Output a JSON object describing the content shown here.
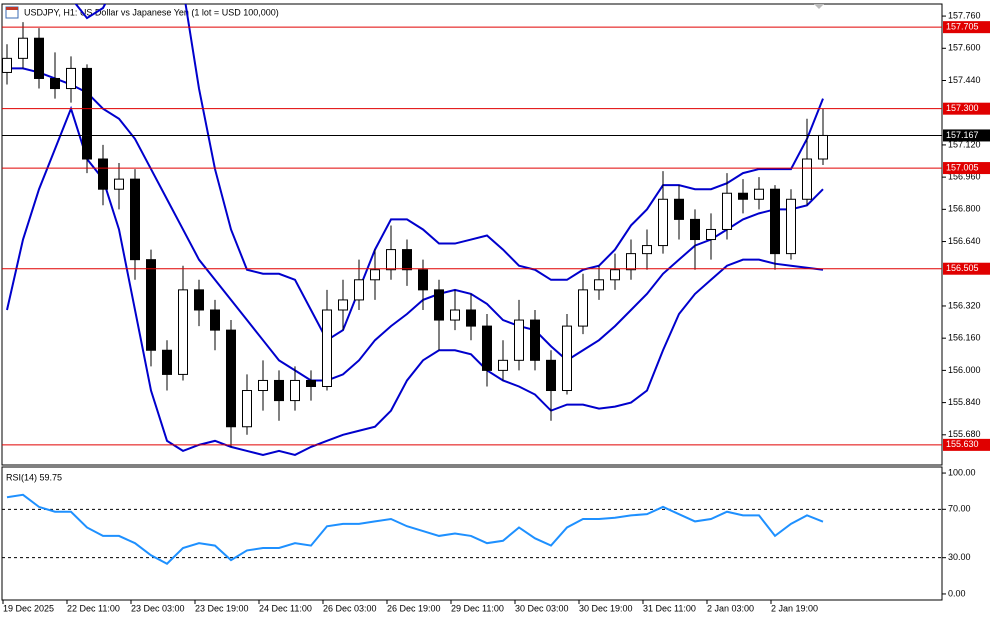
{
  "chart_data": [
    {
      "type": "candlestick",
      "title": "USDJPY, H1:  US Dollar vs Japanese Yen (1 lot = USD 100,000)",
      "categories": [
        "19 Dec 2025",
        null,
        null,
        null,
        "22 Dec 11:00",
        null,
        null,
        null,
        "23 Dec 03:00",
        null,
        null,
        null,
        "23 Dec 19:00",
        null,
        null,
        null,
        "24 Dec 11:00",
        null,
        null,
        null,
        "26 Dec 03:00",
        null,
        null,
        null,
        "26 Dec 19:00",
        null,
        null,
        null,
        "29 Dec 11:00",
        null,
        null,
        null,
        "30 Dec 03:00",
        null,
        null,
        null,
        "30 Dec 19:00",
        null,
        null,
        null,
        "31 Dec 11:00",
        null,
        null,
        null,
        "2 Jan 03:00",
        null,
        null,
        null,
        "2 Jan 19:00",
        null,
        null,
        null
      ],
      "ohlc": [
        [
          157.48,
          157.62,
          157.42,
          157.55
        ],
        [
          157.55,
          157.73,
          157.5,
          157.65
        ],
        [
          157.65,
          157.7,
          157.4,
          157.45
        ],
        [
          157.45,
          157.58,
          157.35,
          157.4
        ],
        [
          157.4,
          157.56,
          157.33,
          157.5
        ],
        [
          157.5,
          157.52,
          156.98,
          157.05
        ],
        [
          157.05,
          157.12,
          156.82,
          156.9
        ],
        [
          156.9,
          157.03,
          156.8,
          156.95
        ],
        [
          156.95,
          157.0,
          156.45,
          156.55
        ],
        [
          156.55,
          156.6,
          156.02,
          156.1
        ],
        [
          156.1,
          156.15,
          155.9,
          155.98
        ],
        [
          155.98,
          156.52,
          155.95,
          156.4
        ],
        [
          156.4,
          156.45,
          156.22,
          156.3
        ],
        [
          156.3,
          156.35,
          156.1,
          156.2
        ],
        [
          156.2,
          156.25,
          155.62,
          155.72
        ],
        [
          155.72,
          155.98,
          155.68,
          155.9
        ],
        [
          155.9,
          156.05,
          155.8,
          155.95
        ],
        [
          155.95,
          156.0,
          155.75,
          155.85
        ],
        [
          155.85,
          156.02,
          155.8,
          155.95
        ],
        [
          155.95,
          156.0,
          155.85,
          155.92
        ],
        [
          155.92,
          156.4,
          155.9,
          156.3
        ],
        [
          156.3,
          156.45,
          156.2,
          156.35
        ],
        [
          156.35,
          156.55,
          156.3,
          156.45
        ],
        [
          156.45,
          156.6,
          156.35,
          156.5
        ],
        [
          156.5,
          156.72,
          156.45,
          156.6
        ],
        [
          156.6,
          156.65,
          156.42,
          156.5
        ],
        [
          156.5,
          156.55,
          156.3,
          156.4
        ],
        [
          156.4,
          156.45,
          156.1,
          156.25
        ],
        [
          156.25,
          156.4,
          156.2,
          156.3
        ],
        [
          156.3,
          156.38,
          156.15,
          156.22
        ],
        [
          156.22,
          156.28,
          155.92,
          156.0
        ],
        [
          156.0,
          156.15,
          155.95,
          156.05
        ],
        [
          156.05,
          156.35,
          156.0,
          156.25
        ],
        [
          156.25,
          156.3,
          156.0,
          156.05
        ],
        [
          156.05,
          156.1,
          155.75,
          155.9
        ],
        [
          155.9,
          156.28,
          155.88,
          156.22
        ],
        [
          156.22,
          156.48,
          156.18,
          156.4
        ],
        [
          156.4,
          156.52,
          156.35,
          156.45
        ],
        [
          156.45,
          156.58,
          156.4,
          156.5
        ],
        [
          156.5,
          156.65,
          156.45,
          156.58
        ],
        [
          156.58,
          156.7,
          156.5,
          156.62
        ],
        [
          156.62,
          156.99,
          156.58,
          156.85
        ],
        [
          156.85,
          156.92,
          156.65,
          156.75
        ],
        [
          156.75,
          156.8,
          156.5,
          156.65
        ],
        [
          156.65,
          156.78,
          156.55,
          156.7
        ],
        [
          156.7,
          156.98,
          156.65,
          156.88
        ],
        [
          156.88,
          156.95,
          156.78,
          156.85
        ],
        [
          156.85,
          156.96,
          156.8,
          156.9
        ],
        [
          156.9,
          156.92,
          156.5,
          156.58
        ],
        [
          156.58,
          156.9,
          156.55,
          156.85
        ],
        [
          156.85,
          157.25,
          156.82,
          157.05
        ],
        [
          157.05,
          157.3,
          157.02,
          157.167
        ]
      ],
      "bull_color": "#ffffff",
      "bear_color": "#000000",
      "candle_outline": "#000000",
      "bands": {
        "color": "#0000cc",
        "upper": [
          158.0,
          158.0,
          158.0,
          157.95,
          157.85,
          157.75,
          157.8,
          157.95,
          158.1,
          158.2,
          158.1,
          157.9,
          157.4,
          157.0,
          156.7,
          156.5,
          156.48,
          156.48,
          156.45,
          156.3,
          156.15,
          156.2,
          156.4,
          156.6,
          156.75,
          156.75,
          156.7,
          156.63,
          156.63,
          156.65,
          156.67,
          156.6,
          156.52,
          156.5,
          156.45,
          156.45,
          156.5,
          156.52,
          156.6,
          156.72,
          156.8,
          156.92,
          156.92,
          156.9,
          156.9,
          156.93,
          156.98,
          157.0,
          157.0,
          157.0,
          157.15,
          157.35
        ],
        "middle": [
          157.5,
          157.5,
          157.48,
          157.45,
          157.42,
          157.38,
          157.3,
          157.25,
          157.15,
          157.0,
          156.85,
          156.7,
          156.55,
          156.45,
          156.35,
          156.25,
          156.15,
          156.05,
          156.0,
          155.95,
          155.95,
          155.98,
          156.05,
          156.15,
          156.22,
          156.28,
          156.35,
          156.38,
          156.4,
          156.38,
          156.33,
          156.25,
          156.22,
          156.2,
          156.12,
          156.05,
          156.1,
          156.15,
          156.22,
          156.3,
          156.38,
          156.48,
          156.55,
          156.62,
          156.65,
          156.7,
          156.75,
          156.78,
          156.8,
          156.8,
          156.82,
          156.9
        ],
        "lower": [
          156.3,
          156.65,
          156.9,
          157.1,
          157.3,
          157.05,
          156.95,
          156.7,
          156.3,
          155.9,
          155.65,
          155.6,
          155.63,
          155.65,
          155.62,
          155.6,
          155.58,
          155.6,
          155.58,
          155.62,
          155.65,
          155.68,
          155.7,
          155.72,
          155.8,
          155.95,
          156.05,
          156.1,
          156.1,
          156.08,
          156.0,
          155.95,
          155.92,
          155.88,
          155.8,
          155.83,
          155.83,
          155.81,
          155.82,
          155.84,
          155.9,
          156.1,
          156.28,
          156.38,
          156.45,
          156.52,
          156.55,
          156.55,
          156.53,
          156.52,
          156.51,
          156.5
        ]
      },
      "levels": [
        {
          "value": 157.705,
          "label": "157.705",
          "color": "#e00000"
        },
        {
          "value": 157.3,
          "label": "157.300",
          "color": "#e00000"
        },
        {
          "value": 157.167,
          "label": "157.167",
          "color": "#000000"
        },
        {
          "value": 157.005,
          "label": "157.005",
          "color": "#e00000"
        },
        {
          "value": 156.505,
          "label": "156.505",
          "color": "#e00000"
        },
        {
          "value": 155.63,
          "label": "155.630",
          "color": "#e00000"
        }
      ],
      "ylim": [
        155.53,
        157.82
      ],
      "yticks": [
        {
          "value": 157.76,
          "label": "157.760"
        },
        {
          "value": 157.6,
          "label": "157.600"
        },
        {
          "value": 157.44,
          "label": "157.440"
        },
        {
          "value": 157.12,
          "label": "157.120"
        },
        {
          "value": 156.96,
          "label": "156.960"
        },
        {
          "value": 156.8,
          "label": "156.800"
        },
        {
          "value": 156.64,
          "label": "156.640"
        },
        {
          "value": 156.32,
          "label": "156.320"
        },
        {
          "value": 156.16,
          "label": "156.160"
        },
        {
          "value": 156.0,
          "label": "156.000"
        },
        {
          "value": 155.84,
          "label": "155.840"
        },
        {
          "value": 155.68,
          "label": "155.680"
        }
      ]
    },
    {
      "type": "line",
      "title": "RSI(14) 59.75",
      "color": "#1e90ff",
      "values": [
        80,
        82,
        72,
        68,
        68,
        55,
        48,
        48,
        42,
        32,
        25,
        38,
        42,
        40,
        28,
        36,
        38,
        38,
        42,
        40,
        56,
        58,
        58,
        60,
        62,
        56,
        52,
        48,
        50,
        48,
        42,
        44,
        55,
        46,
        40,
        55,
        62,
        62,
        63,
        65,
        66,
        72,
        66,
        60,
        62,
        68,
        65,
        65,
        48,
        58,
        65,
        59.75
      ],
      "levels": [
        70,
        30
      ],
      "ylim": [
        -5,
        105
      ],
      "yticks": [
        {
          "value": 100,
          "label": "100.00"
        },
        {
          "value": 70,
          "label": "70.00"
        },
        {
          "value": 30,
          "label": "30.00"
        },
        {
          "value": 0,
          "label": "0.00"
        }
      ]
    }
  ]
}
